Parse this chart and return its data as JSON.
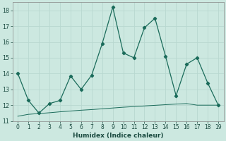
{
  "xlabel": "Humidex (Indice chaleur)",
  "x": [
    0,
    1,
    2,
    3,
    4,
    5,
    6,
    7,
    8,
    9,
    10,
    11,
    12,
    13,
    14,
    15,
    16,
    17,
    18,
    19
  ],
  "line1": [
    14,
    12.3,
    11.5,
    12.1,
    12.3,
    13.85,
    13.0,
    13.9,
    15.9,
    18.2,
    15.3,
    15.0,
    16.9,
    17.5,
    15.1,
    12.6,
    14.6,
    15.0,
    13.4,
    12.0
  ],
  "line2": [
    11.3,
    11.42,
    11.47,
    11.52,
    11.58,
    11.63,
    11.68,
    11.72,
    11.77,
    11.82,
    11.87,
    11.91,
    11.95,
    11.99,
    12.03,
    12.07,
    12.1,
    12.0,
    12.0,
    12.0
  ],
  "line_color": "#1a6b5a",
  "bg_color": "#cce8e0",
  "grid_color": "#b8d8d0",
  "ylim": [
    11,
    18.5
  ],
  "yticks": [
    11,
    12,
    13,
    14,
    15,
    16,
    17,
    18
  ],
  "xlim": [
    -0.5,
    19.5
  ]
}
